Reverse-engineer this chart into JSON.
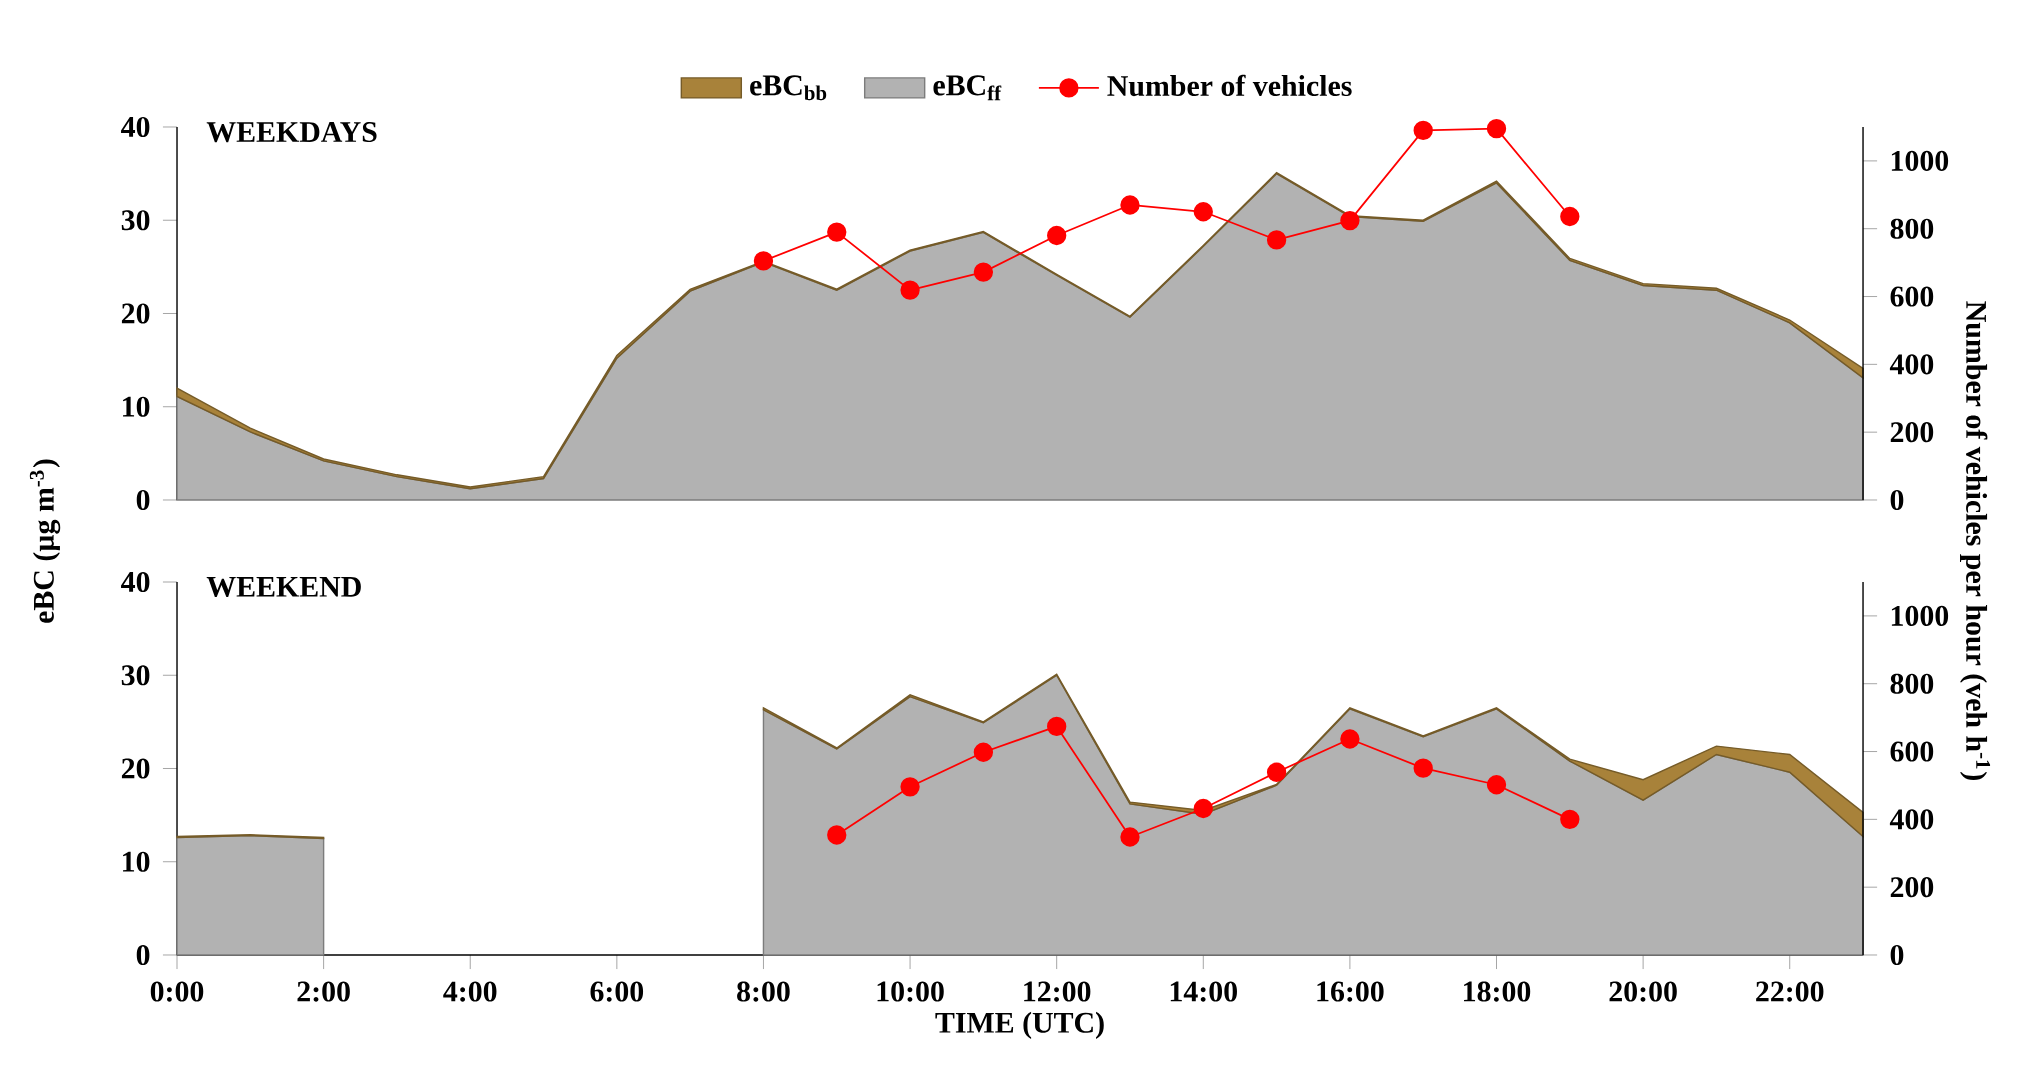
{
  "chart_data": [
    {
      "type": "area",
      "title": "WEEKDAYS",
      "stacked": true,
      "legend": "top",
      "tick_labels": "y",
      "x": [
        0,
        1,
        2,
        3,
        4,
        5,
        6,
        7,
        8,
        9,
        10,
        11,
        12,
        13,
        14,
        15,
        16,
        17,
        18,
        19,
        20,
        21,
        22,
        23
      ],
      "xlim": [
        0,
        23
      ],
      "ylim": [
        0,
        40
      ],
      "yticks": [
        0,
        10,
        20,
        30,
        40
      ],
      "y2lim": [
        0,
        1100
      ],
      "y2ticks": [
        0,
        200,
        400,
        600,
        800,
        1000
      ],
      "ylabel": "eBC (µg m$^{-3}$)",
      "y2label": "Number of vehicles per hour (veh h$^{-1}$)",
      "series": [
        {
          "name": "eBC$_{ff}$",
          "color": "#b2b2b2",
          "values": [
            11.1,
            7.3,
            4.2,
            2.5,
            1.2,
            2.3,
            15.2,
            22.4,
            25.5,
            22.5,
            26.7,
            28.7,
            24.1,
            19.6,
            27.2,
            35.0,
            30.4,
            29.9,
            34.0,
            25.7,
            23.0,
            22.5,
            19.0,
            13.1
          ]
        },
        {
          "name": "eBC$_{bb}$",
          "color": "#a8823a",
          "values": [
            0.9,
            0.4,
            0.2,
            0.2,
            0.2,
            0.2,
            0.3,
            0.2,
            0.1,
            0.1,
            0.1,
            0.1,
            0.1,
            0.1,
            0.1,
            0.1,
            0.1,
            0.1,
            0.2,
            0.2,
            0.2,
            0.2,
            0.3,
            1.0
          ]
        },
        {
          "name": "Number of vehicles",
          "type": "line",
          "axis": "y2",
          "marker": "circle",
          "color": "#ff0000",
          "values": [
            null,
            null,
            null,
            null,
            null,
            null,
            null,
            null,
            705,
            790,
            619,
            672,
            780,
            870,
            850,
            767,
            824,
            1090,
            1095,
            836,
            null,
            null,
            null,
            null
          ]
        }
      ]
    },
    {
      "type": "area",
      "title": "WEEKEND",
      "stacked": true,
      "xlabel": "TIME (UTC)",
      "x": [
        0,
        1,
        2,
        3,
        4,
        5,
        6,
        7,
        8,
        9,
        10,
        11,
        12,
        13,
        14,
        15,
        16,
        17,
        18,
        19,
        20,
        21,
        22,
        23
      ],
      "xlim": [
        0,
        23
      ],
      "ylim": [
        0,
        40
      ],
      "yticks": [
        0,
        10,
        20,
        30,
        40
      ],
      "y2lim": [
        0,
        1100
      ],
      "y2ticks": [
        0,
        200,
        400,
        600,
        800,
        1000
      ],
      "xticks": [
        {
          "value": 0,
          "label": "0:00"
        },
        {
          "value": 2,
          "label": "2:00"
        },
        {
          "value": 4,
          "label": "4:00"
        },
        {
          "value": 6,
          "label": "6:00"
        },
        {
          "value": 8,
          "label": "8:00"
        },
        {
          "value": 10,
          "label": "10:00"
        },
        {
          "value": 12,
          "label": "12:00"
        },
        {
          "value": 14,
          "label": "14:00"
        },
        {
          "value": 16,
          "label": "16:00"
        },
        {
          "value": 18,
          "label": "18:00"
        },
        {
          "value": 20,
          "label": "20:00"
        },
        {
          "value": 22,
          "label": "22:00"
        }
      ],
      "series": [
        {
          "color": "#b2b2b2",
          "values": [
            12.6,
            12.8,
            12.5,
            null,
            null,
            null,
            null,
            null,
            26.3,
            22.1,
            27.7,
            24.9,
            30.0,
            16.2,
            15.1,
            18.2,
            26.4,
            23.4,
            26.4,
            20.8,
            16.6,
            21.5,
            19.6,
            12.7
          ]
        },
        {
          "color": "#a8823a",
          "values": [
            0.1,
            0.1,
            0.1,
            null,
            null,
            null,
            null,
            null,
            0.2,
            0.1,
            0.2,
            0.1,
            0.1,
            0.2,
            0.4,
            0.1,
            0.1,
            0.1,
            0.1,
            0.2,
            2.2,
            0.9,
            1.9,
            2.6
          ]
        },
        {
          "type": "line",
          "axis": "y2",
          "marker": "circle",
          "color": "#ff0000",
          "values": [
            null,
            null,
            null,
            null,
            null,
            null,
            null,
            null,
            null,
            354,
            496,
            598,
            674,
            348,
            432,
            539,
            637,
            551,
            502,
            400,
            null,
            null,
            null,
            null
          ]
        }
      ]
    }
  ]
}
